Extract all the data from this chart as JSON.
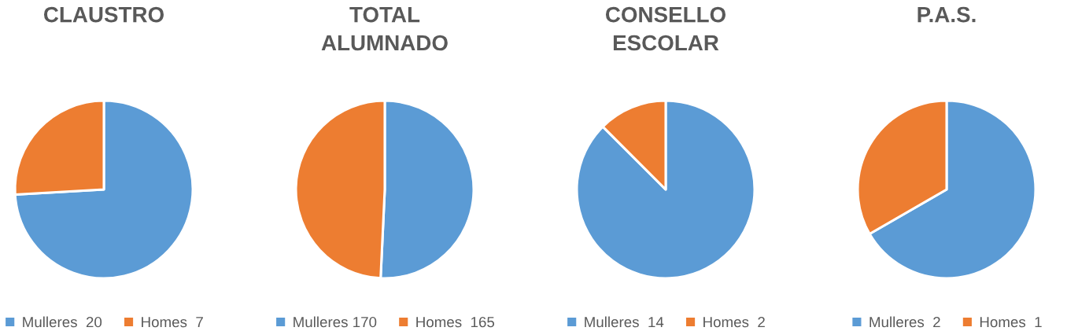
{
  "chart_data": [
    {
      "type": "pie",
      "title": "CLAUSTRO",
      "categories": [
        "Mulleres  20",
        "Homes  7"
      ],
      "values": [
        20,
        7
      ],
      "colors": [
        "#5b9bd5",
        "#ed7d31"
      ],
      "legend": "bottom"
    },
    {
      "type": "pie",
      "title": "TOTAL\nALUMNADO",
      "categories": [
        "Mulleres 170",
        "Homes  165"
      ],
      "values": [
        170,
        165
      ],
      "colors": [
        "#5b9bd5",
        "#ed7d31"
      ],
      "legend": "bottom"
    },
    {
      "type": "pie",
      "title": "CONSELLO\nESCOLAR",
      "categories": [
        "Mulleres  14",
        "Homes  2"
      ],
      "values": [
        14,
        2
      ],
      "colors": [
        "#5b9bd5",
        "#ed7d31"
      ],
      "legend": "bottom"
    },
    {
      "type": "pie",
      "title": "P.A.S.",
      "categories": [
        "Mulleres  2",
        "Homes  1"
      ],
      "values": [
        2,
        1
      ],
      "colors": [
        "#5b9bd5",
        "#ed7d31"
      ],
      "legend": "bottom"
    }
  ]
}
